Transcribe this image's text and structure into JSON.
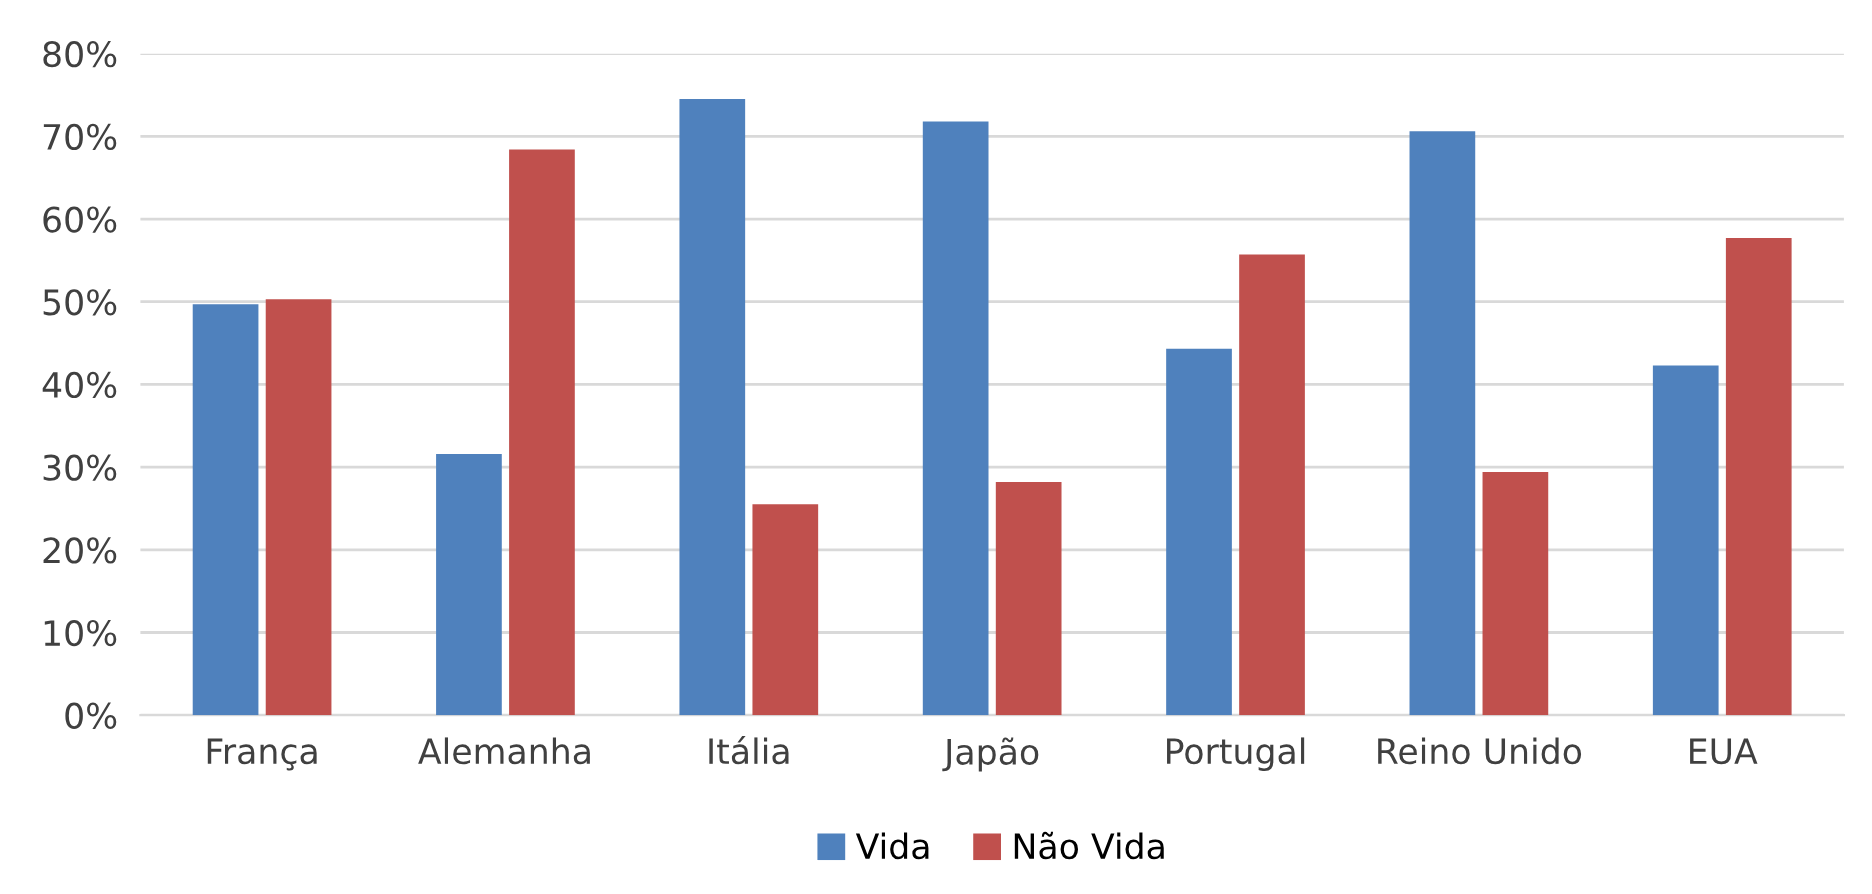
{
  "chart_data": {
    "type": "bar",
    "categories": [
      "França",
      "Alemanha",
      "Itália",
      "Japão",
      "Portugal",
      "Reino Unido",
      "EUA"
    ],
    "series": [
      {
        "name": "Vida",
        "color": "#4f81bd",
        "values": [
          49.7,
          31.6,
          74.5,
          71.8,
          44.3,
          70.6,
          42.3
        ]
      },
      {
        "name": "Não Vida",
        "color": "#c0504d",
        "values": [
          50.3,
          68.4,
          25.5,
          28.2,
          55.7,
          29.4,
          57.7
        ]
      }
    ],
    "ylim": [
      0,
      80
    ],
    "yticks": [
      {
        "value": 0,
        "label": "0%"
      },
      {
        "value": 10,
        "label": "10%"
      },
      {
        "value": 20,
        "label": "20%"
      },
      {
        "value": 30,
        "label": "30%"
      },
      {
        "value": 40,
        "label": "40%"
      },
      {
        "value": 50,
        "label": "50%"
      },
      {
        "value": 60,
        "label": "60%"
      },
      {
        "value": 70,
        "label": "70%"
      },
      {
        "value": 80,
        "label": "80%"
      }
    ],
    "grid": "y",
    "legend": "bottom"
  }
}
